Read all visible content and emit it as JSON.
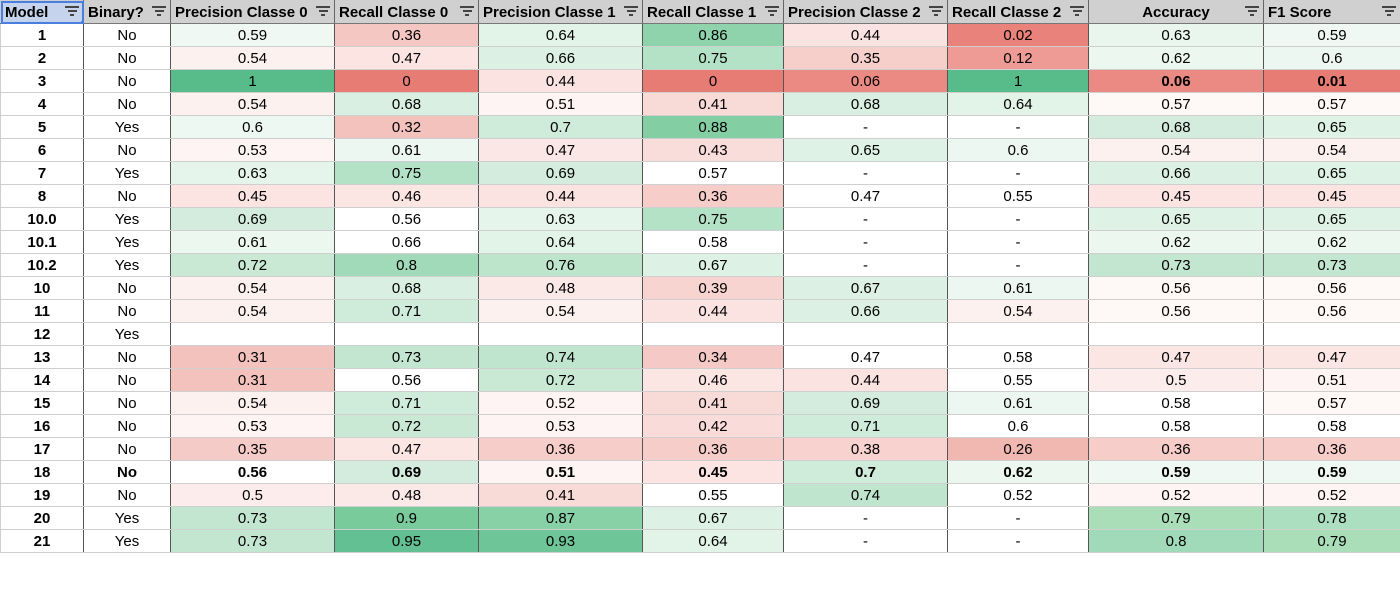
{
  "headers": [
    "Model",
    "Binary?",
    "Precision Classe 0",
    "Recall Classe 0",
    "Precision Classe 1",
    "Recall Classe 1",
    "Precision Classe 2",
    "Recall Classe 2",
    "Accuracy",
    "F1 Score"
  ],
  "rows": [
    {
      "cells": [
        "1",
        "No",
        "0.59",
        "0.36",
        "0.64",
        "0.86",
        "0.44",
        "0.02",
        "0.63",
        "0.59"
      ],
      "colors": [
        "#ffffff",
        "#ffffff",
        "#f0f8f3",
        "#f4c7c3",
        "#e2f3e8",
        "#8fd3ac",
        "#fbe3e1",
        "#e9827a",
        "#e8f6ed",
        "#f0f8f3"
      ]
    },
    {
      "cells": [
        "2",
        "No",
        "0.54",
        "0.47",
        "0.66",
        "0.75",
        "0.35",
        "0.12",
        "0.62",
        "0.6"
      ],
      "colors": [
        "#ffffff",
        "#ffffff",
        "#fdf1f0",
        "#fbe4e2",
        "#dcf1e3",
        "#b4e2c6",
        "#f6cfcb",
        "#ed9b94",
        "#ebf7ef",
        "#edf7f1"
      ]
    },
    {
      "cells": [
        "3",
        "No",
        "1",
        "0",
        "0.44",
        "0",
        "0.06",
        "1",
        "0.06",
        "0.01"
      ],
      "colors": [
        "#ffffff",
        "#ffffff",
        "#57bb8a",
        "#e67c73",
        "#fbe3e1",
        "#e67c73",
        "#ea8a82",
        "#57bb8a",
        "#ea8a82",
        "#e67c73"
      ],
      "bold": [
        8,
        9
      ]
    },
    {
      "cells": [
        "4",
        "No",
        "0.54",
        "0.68",
        "0.51",
        "0.41",
        "0.68",
        "0.64",
        "0.57",
        "0.57"
      ],
      "colors": [
        "#ffffff",
        "#ffffff",
        "#fdf1f0",
        "#d9efe2",
        "#fdf4f3",
        "#f8dad7",
        "#d9efe2",
        "#e2f3e8",
        "#fef8f7",
        "#fef8f7"
      ]
    },
    {
      "cells": [
        "5",
        "Yes",
        "0.6",
        "0.32",
        "0.7",
        "0.88",
        "-",
        "-",
        "0.68",
        "0.65"
      ],
      "colors": [
        "#ffffff",
        "#ffffff",
        "#eef8f2",
        "#f3c2bd",
        "#cfebda",
        "#84ce a4",
        "#ffffff",
        "#ffffff",
        "#d3ecdd",
        "#dff2e6"
      ]
    },
    {
      "cells": [
        "6",
        "No",
        "0.53",
        "0.61",
        "0.47",
        "0.43",
        "0.65",
        "0.6",
        "0.54",
        "0.54"
      ],
      "colors": [
        "#ffffff",
        "#ffffff",
        "#fdf4f3",
        "#edf7f1",
        "#fbe7e5",
        "#f9ddda",
        "#dff2e6",
        "#edf7f1",
        "#fdf1f0",
        "#fdf1f0"
      ]
    },
    {
      "cells": [
        "7",
        "Yes",
        "0.63",
        "0.75",
        "0.69",
        "0.57",
        "-",
        "-",
        "0.66",
        "0.65"
      ],
      "colors": [
        "#ffffff",
        "#ffffff",
        "#e6f5eb",
        "#b4e2c6",
        "#d3ecdd",
        "#ffffff",
        "#ffffff",
        "#ffffff",
        "#dcf1e3",
        "#dff2e6"
      ]
    },
    {
      "cells": [
        "8",
        "No",
        "0.45",
        "0.46",
        "0.44",
        "0.36",
        "0.47",
        "0.55",
        "0.45",
        "0.45"
      ],
      "colors": [
        "#ffffff",
        "#ffffff",
        "#fbe4e2",
        "#fbe6e4",
        "#fbe3e1",
        "#f6cdc9",
        "#ffffff",
        "#ffffff",
        "#fbe4e2",
        "#fbe4e2"
      ]
    },
    {
      "cells": [
        "10.0",
        "Yes",
        "0.69",
        "0.56",
        "0.63",
        "0.75",
        "-",
        "-",
        "0.65",
        "0.65"
      ],
      "colors": [
        "#ffffff",
        "#ffffff",
        "#d3ecdd",
        "#ffffff",
        "#e6f5eb",
        "#b4e2c6",
        "#ffffff",
        "#ffffff",
        "#dff2e6",
        "#dff2e6"
      ]
    },
    {
      "cells": [
        "10.1",
        "Yes",
        "0.61",
        "0.66",
        "0.64",
        "0.58",
        "-",
        "-",
        "0.62",
        "0.62"
      ],
      "colors": [
        "#ffffff",
        "#ffffff",
        "#ebf7ef",
        "#ffffff",
        "#e2f3e8",
        "#ffffff",
        "#ffffff",
        "#ffffff",
        "#ebf7ef",
        "#ebf7ef"
      ]
    },
    {
      "cells": [
        "10.2",
        "Yes",
        "0.72",
        "0.8",
        "0.76",
        "0.67",
        "-",
        "-",
        "0.73",
        "0.73"
      ],
      "colors": [
        "#ffffff",
        "#ffffff",
        "#c9e9d5",
        "#a1dab8",
        "#bde5cc",
        "#ddf1e4",
        "#ffffff",
        "#ffffff",
        "#c3e6d0",
        "#c3e6d0"
      ]
    },
    {
      "cells": [
        "10",
        "No",
        "0.54",
        "0.68",
        "0.48",
        "0.39",
        "0.67",
        "0.61",
        "0.56",
        "0.56"
      ],
      "colors": [
        "#ffffff",
        "#ffffff",
        "#fdf1f0",
        "#d9efe2",
        "#fbe9e7",
        "#f7d4d0",
        "#dcf1e3",
        "#edf7f1",
        "#fef8f7",
        "#fef8f7"
      ]
    },
    {
      "cells": [
        "11",
        "No",
        "0.54",
        "0.71",
        "0.54",
        "0.44",
        "0.66",
        "0.54",
        "0.56",
        "0.56"
      ],
      "colors": [
        "#ffffff",
        "#ffffff",
        "#fdf1f0",
        "#cfebda",
        "#fdf1f0",
        "#fbe3e1",
        "#dcf1e3",
        "#fdf1f0",
        "#fef8f7",
        "#fef8f7"
      ]
    },
    {
      "cells": [
        "12",
        "Yes",
        "",
        "",
        "",
        "",
        "",
        "",
        "",
        ""
      ],
      "colors": [
        "#ffffff",
        "#ffffff",
        "#ffffff",
        "#ffffff",
        "#ffffff",
        "#ffffff",
        "#ffffff",
        "#ffffff",
        "#ffffff",
        "#ffffff"
      ]
    },
    {
      "cells": [
        "13",
        "No",
        "0.31",
        "0.73",
        "0.74",
        "0.34",
        "0.47",
        "0.58",
        "0.47",
        "0.47"
      ],
      "colors": [
        "#ffffff",
        "#ffffff",
        "#f3c2bd",
        "#c3e6d0",
        "#c0e5ce",
        "#f5c9c5",
        "#ffffff",
        "#ffffff",
        "#fbe6e4",
        "#fbe6e4"
      ]
    },
    {
      "cells": [
        "14",
        "No",
        "0.31",
        "0.56",
        "0.72",
        "0.46",
        "0.44",
        "0.55",
        "0.5",
        "0.51"
      ],
      "colors": [
        "#ffffff",
        "#ffffff",
        "#f3c2bd",
        "#ffffff",
        "#c9e9d5",
        "#fbe6e4",
        "#fbe3e1",
        "#ffffff",
        "#fcedec",
        "#fdf4f3"
      ]
    },
    {
      "cells": [
        "15",
        "No",
        "0.54",
        "0.71",
        "0.52",
        "0.41",
        "0.69",
        "0.61",
        "0.58",
        "0.57"
      ],
      "colors": [
        "#ffffff",
        "#ffffff",
        "#fdf1f0",
        "#cfebda",
        "#fdf4f3",
        "#f8dad7",
        "#d3ecdd",
        "#edf7f1",
        "#ffffff",
        "#fef8f7"
      ]
    },
    {
      "cells": [
        "16",
        "No",
        "0.53",
        "0.72",
        "0.53",
        "0.42",
        "0.71",
        "0.6",
        "0.58",
        "0.58"
      ],
      "colors": [
        "#ffffff",
        "#ffffff",
        "#fdf4f3",
        "#c9e9d5",
        "#fdf4f3",
        "#f9dcd9",
        "#cfebda",
        "#ffffff",
        "#ffffff",
        "#ffffff"
      ]
    },
    {
      "cells": [
        "17",
        "No",
        "0.35",
        "0.47",
        "0.36",
        "0.36",
        "0.38",
        "0.26",
        "0.36",
        "0.36"
      ],
      "colors": [
        "#ffffff",
        "#ffffff",
        "#f5cbc7",
        "#fbe6e4",
        "#f6cdc9",
        "#f6cdc9",
        "#f7d2ce",
        "#f1b7b1",
        "#f6cdc9",
        "#f6cdc9"
      ]
    },
    {
      "cells": [
        "18",
        "No",
        "0.56",
        "0.69",
        "0.51",
        "0.45",
        "0.7",
        "0.62",
        "0.59",
        "0.59"
      ],
      "colors": [
        "#ffffff",
        "#ffffff",
        "#ffffff",
        "#d3ecdd",
        "#fdf4f3",
        "#fbe4e2",
        "#cfebda",
        "#ebf7ef",
        "#f0f8f3",
        "#f0f8f3"
      ],
      "boldRow": true
    },
    {
      "cells": [
        "19",
        "No",
        "0.5",
        "0.48",
        "0.41",
        "0.55",
        "0.74",
        "0.52",
        "0.52",
        "0.52"
      ],
      "colors": [
        "#ffffff",
        "#ffffff",
        "#fcedec",
        "#fbe9e7",
        "#f8dad7",
        "#ffffff",
        "#c0e5ce",
        "#ffffff",
        "#fdf4f3",
        "#fdf4f3"
      ]
    },
    {
      "cells": [
        "20",
        "Yes",
        "0.73",
        "0.9",
        "0.87",
        "0.67",
        "-",
        "-",
        "0.79",
        "0.78"
      ],
      "colors": [
        "#ffffff",
        "#ffffff",
        "#c3e6d0",
        "#7acb9c",
        "#88d0a6",
        "#ddf1e4",
        "#ffffff",
        "#ffffff",
        "#a9deb9",
        "#acdfbf"
      ]
    },
    {
      "cells": [
        "21",
        "Yes",
        "0.73",
        "0.95",
        "0.93",
        "0.64",
        "-",
        "-",
        "0.8",
        "0.79"
      ],
      "colors": [
        "#ffffff",
        "#ffffff",
        "#c3e6d0",
        "#63c092",
        "#6dc598",
        "#e2f3e8",
        "#ffffff",
        "#ffffff",
        "#a1dab8",
        "#a9deb9"
      ]
    }
  ]
}
